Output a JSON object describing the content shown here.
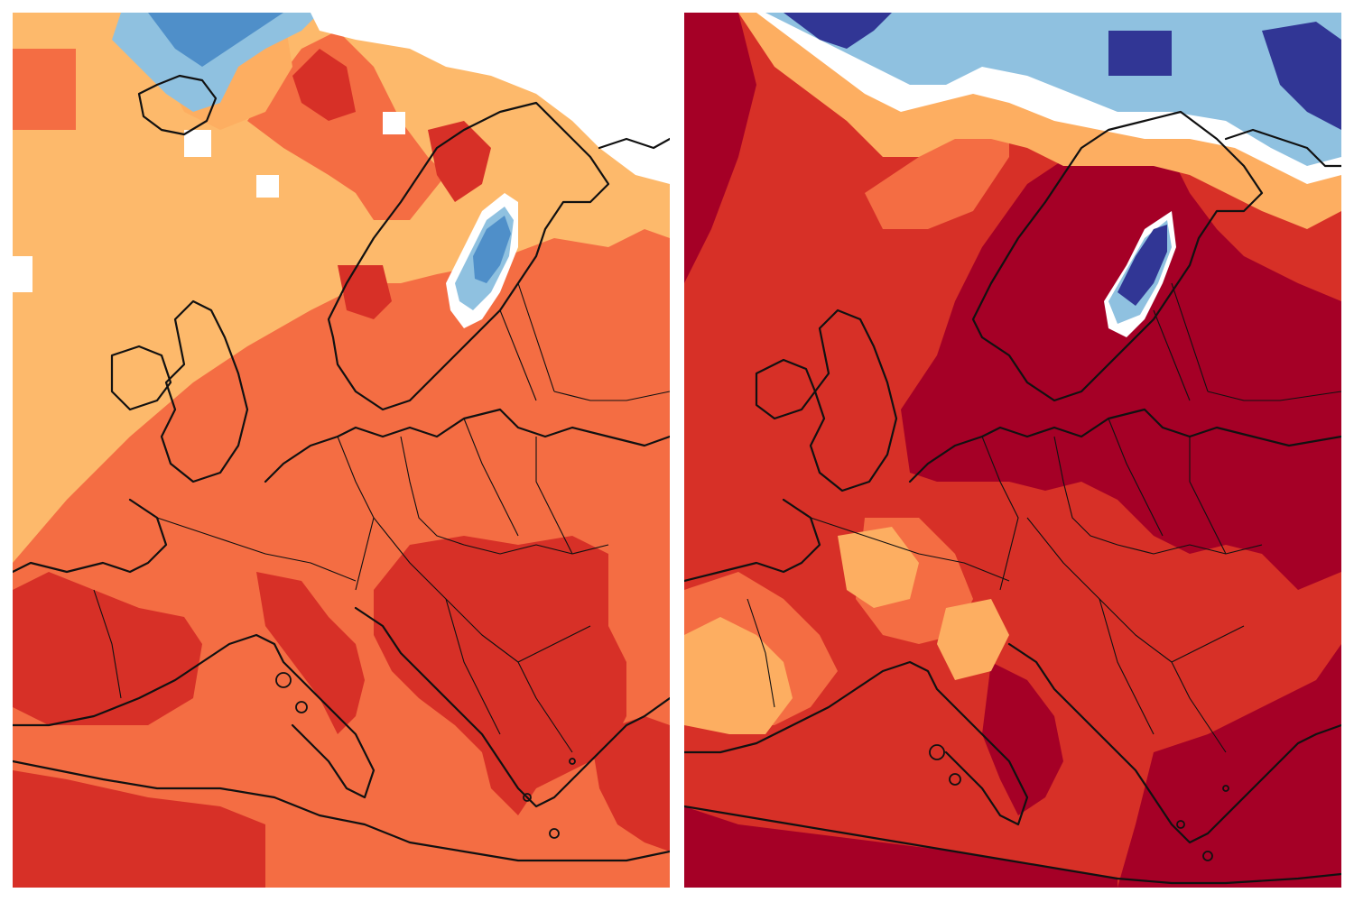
{
  "figure": {
    "panels": [
      {
        "id": "left",
        "variant": "moderate"
      },
      {
        "id": "right",
        "variant": "strong"
      }
    ]
  },
  "colors": {
    "dark_red": "#a50026",
    "red": "#d73027",
    "orange": "#f46d43",
    "light_orange": "#fdae61",
    "pale_orange": "#fdb96b",
    "white": "#ffffff",
    "pale_blue": "#c6e2f2",
    "light_blue": "#8fc1e0",
    "mid_blue": "#4f8fc9",
    "navy": "#313695",
    "coastline": "#111111"
  },
  "map_features": [
    "coastline-europe",
    "country-borders",
    "gulf-of-bothnia-anomaly",
    "arctic-polar-cap"
  ]
}
